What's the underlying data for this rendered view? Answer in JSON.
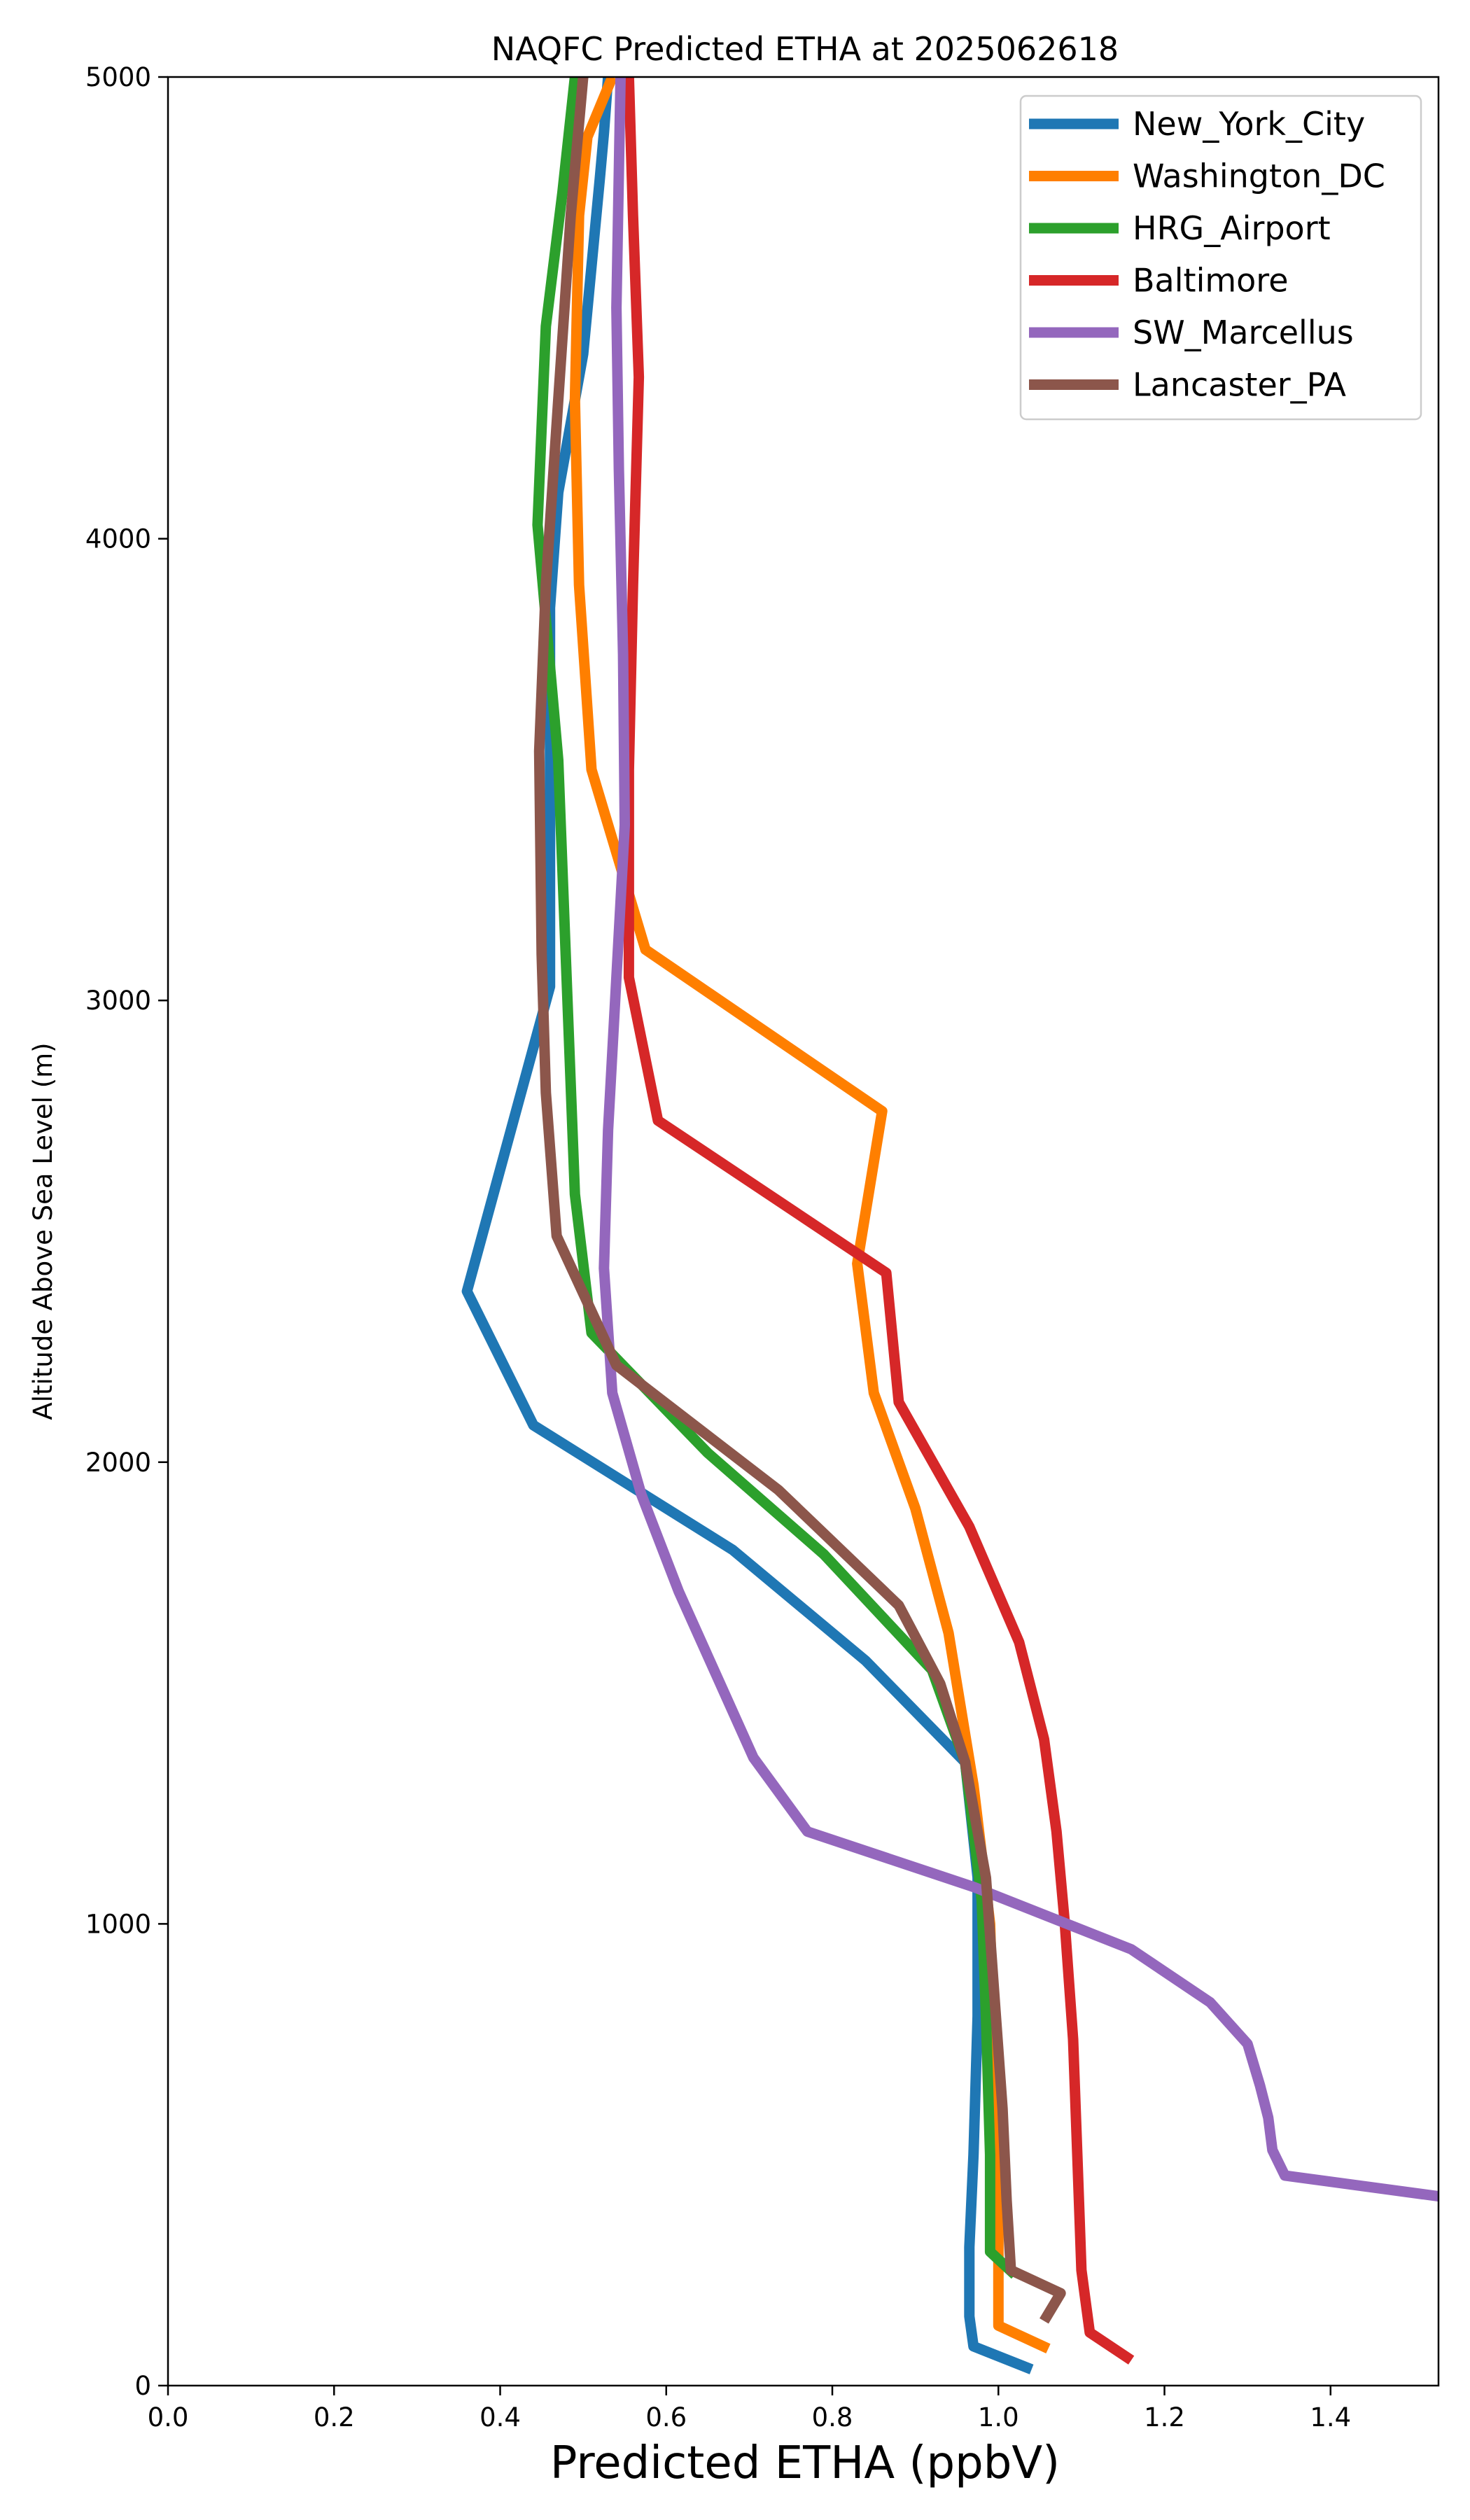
{
  "chart_data": {
    "type": "line",
    "title": "NAQFC Predicted ETHA at 2025062618",
    "xlabel": "Predicted ETHA (ppbV)",
    "ylabel": "Altitude Above Sea Level (m)",
    "xlim": [
      0.0,
      1.53
    ],
    "ylim": [
      0,
      5000
    ],
    "xticks": [
      "0.0",
      "0.2",
      "0.4",
      "0.6",
      "0.8",
      "1.0",
      "1.2",
      "1.4"
    ],
    "yticks": [
      "0",
      "1000",
      "2000",
      "3000",
      "4000",
      "5000"
    ],
    "grid": false,
    "legend_position": "top-right",
    "series": [
      {
        "name": "New_York_City",
        "color": "#1f77b4",
        "points": [
          [
            1.04,
            35
          ],
          [
            0.97,
            85
          ],
          [
            0.965,
            150
          ],
          [
            0.965,
            300
          ],
          [
            0.97,
            500
          ],
          [
            0.975,
            800
          ],
          [
            0.975,
            1100
          ],
          [
            0.96,
            1350
          ],
          [
            0.84,
            1570
          ],
          [
            0.68,
            1810
          ],
          [
            0.44,
            2080
          ],
          [
            0.36,
            2370
          ],
          [
            0.46,
            3030
          ],
          [
            0.46,
            3500
          ],
          [
            0.46,
            3850
          ],
          [
            0.47,
            4100
          ],
          [
            0.5,
            4400
          ],
          [
            0.52,
            4780
          ],
          [
            0.525,
            4880
          ],
          [
            0.53,
            5000
          ]
        ]
      },
      {
        "name": "Washington_DC",
        "color": "#ff7f00",
        "points": [
          [
            1.06,
            80
          ],
          [
            1.0,
            130
          ],
          [
            1.0,
            250
          ],
          [
            1.0,
            400
          ],
          [
            0.995,
            700
          ],
          [
            0.99,
            1000
          ],
          [
            0.97,
            1300
          ],
          [
            0.94,
            1630
          ],
          [
            0.9,
            1900
          ],
          [
            0.85,
            2150
          ],
          [
            0.83,
            2430
          ],
          [
            0.86,
            2760
          ],
          [
            0.575,
            3110
          ],
          [
            0.51,
            3500
          ],
          [
            0.495,
            3900
          ],
          [
            0.49,
            4300
          ],
          [
            0.495,
            4700
          ],
          [
            0.505,
            4870
          ],
          [
            0.535,
            5000
          ]
        ]
      },
      {
        "name": "HRG_Airport",
        "color": "#2ca02c",
        "points": [
          [
            1.02,
            240
          ],
          [
            0.99,
            290
          ],
          [
            0.99,
            500
          ],
          [
            0.985,
            800
          ],
          [
            0.98,
            1050
          ],
          [
            0.96,
            1350
          ],
          [
            0.92,
            1550
          ],
          [
            0.79,
            1800
          ],
          [
            0.65,
            2020
          ],
          [
            0.51,
            2280
          ],
          [
            0.49,
            2580
          ],
          [
            0.47,
            3520
          ],
          [
            0.445,
            4030
          ],
          [
            0.455,
            4460
          ],
          [
            0.475,
            4750
          ],
          [
            0.49,
            5000
          ]
        ]
      },
      {
        "name": "Baltimore",
        "color": "#d62728",
        "points": [
          [
            1.16,
            55
          ],
          [
            1.11,
            115
          ],
          [
            1.1,
            250
          ],
          [
            1.095,
            500
          ],
          [
            1.09,
            750
          ],
          [
            1.08,
            1000
          ],
          [
            1.07,
            1200
          ],
          [
            1.055,
            1400
          ],
          [
            1.025,
            1610
          ],
          [
            0.965,
            1860
          ],
          [
            0.88,
            2130
          ],
          [
            0.865,
            2410
          ],
          [
            0.59,
            2740
          ],
          [
            0.555,
            3050
          ],
          [
            0.555,
            3500
          ],
          [
            0.56,
            3900
          ],
          [
            0.567,
            4350
          ],
          [
            0.56,
            4700
          ],
          [
            0.555,
            5000
          ]
        ]
      },
      {
        "name": "SW_Marcellus",
        "color": "#9467bd",
        "points": [
          [
            1.53,
            410
          ],
          [
            1.345,
            455
          ],
          [
            1.33,
            510
          ],
          [
            1.325,
            580
          ],
          [
            1.315,
            650
          ],
          [
            1.3,
            740
          ],
          [
            1.255,
            830
          ],
          [
            1.16,
            945
          ],
          [
            0.97,
            1080
          ],
          [
            0.77,
            1200
          ],
          [
            0.705,
            1360
          ],
          [
            0.615,
            1720
          ],
          [
            0.57,
            1930
          ],
          [
            0.535,
            2150
          ],
          [
            0.525,
            2420
          ],
          [
            0.53,
            2720
          ],
          [
            0.54,
            3050
          ],
          [
            0.55,
            3380
          ],
          [
            0.548,
            3750
          ],
          [
            0.543,
            4150
          ],
          [
            0.54,
            4500
          ],
          [
            0.545,
            5000
          ]
        ]
      },
      {
        "name": "Lancaster_PA",
        "color": "#8c564b",
        "points": [
          [
            1.055,
            140
          ],
          [
            1.075,
            200
          ],
          [
            1.015,
            250
          ],
          [
            1.01,
            400
          ],
          [
            1.005,
            600
          ],
          [
            0.995,
            850
          ],
          [
            0.985,
            1100
          ],
          [
            0.96,
            1350
          ],
          [
            0.93,
            1520
          ],
          [
            0.88,
            1690
          ],
          [
            0.735,
            1940
          ],
          [
            0.54,
            2210
          ],
          [
            0.468,
            2490
          ],
          [
            0.455,
            2800
          ],
          [
            0.45,
            3100
          ],
          [
            0.447,
            3540
          ],
          [
            0.455,
            3900
          ],
          [
            0.47,
            4300
          ],
          [
            0.485,
            4700
          ],
          [
            0.495,
            4900
          ],
          [
            0.5,
            5000
          ]
        ]
      }
    ]
  }
}
